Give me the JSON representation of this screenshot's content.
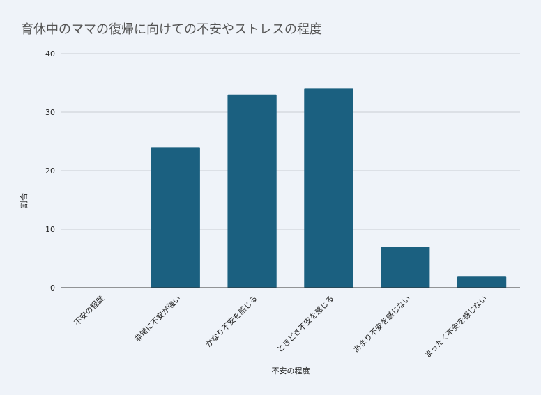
{
  "chart_data": {
    "type": "bar",
    "title": "育休中のママの復帰に向けての不安やストレスの程度",
    "xlabel": "不安の程度",
    "ylabel": "割合",
    "categories": [
      "不安の程度",
      "非常に不安が強い",
      "かなり不安を感じる",
      "ときどき不安を感じる",
      "あまり不安を感じない",
      "まったく不安を感じない"
    ],
    "series": [
      {
        "values": [
          0,
          24,
          33,
          34,
          7,
          2
        ]
      }
    ],
    "ylim": [
      0,
      40
    ],
    "yticks": [
      0,
      10,
      20,
      30,
      40
    ],
    "grid": true,
    "legend": "none",
    "colors": {
      "bar": "#1b6080",
      "grid": "#c9ccd3",
      "axis": "#333333"
    }
  }
}
